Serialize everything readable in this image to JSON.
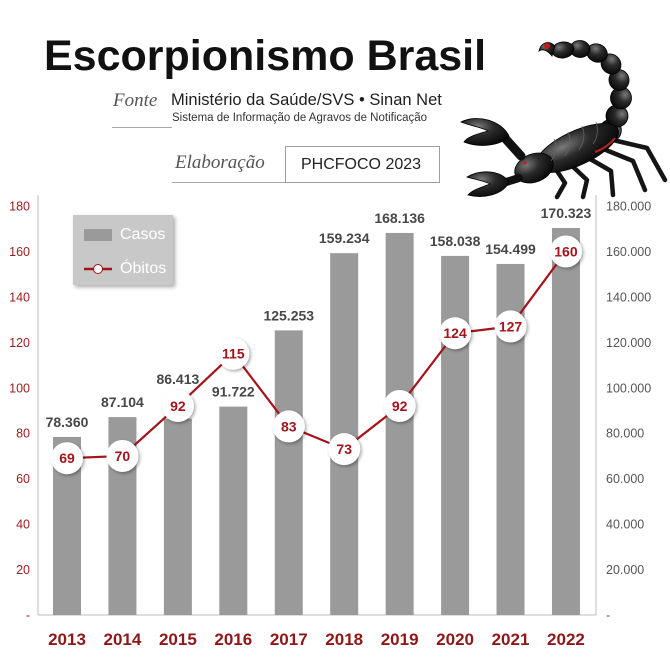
{
  "chart_data": {
    "type": "bar",
    "title": "Escorpionismo Brasil",
    "categories": [
      "2013",
      "2014",
      "2015",
      "2016",
      "2017",
      "2018",
      "2019",
      "2020",
      "2021",
      "2022"
    ],
    "series": [
      {
        "name": "Casos",
        "type": "bar",
        "axis": "right",
        "values": [
          78360,
          87104,
          86413,
          91722,
          125253,
          159234,
          168136,
          158038,
          154499,
          170323
        ],
        "data_labels": [
          "78.360",
          "87.104",
          "86.413",
          "91.722",
          "125.253",
          "159.234",
          "168.136",
          "158.038",
          "154.499",
          "170.323"
        ]
      },
      {
        "name": "Óbitos",
        "type": "line",
        "axis": "left",
        "values": [
          69,
          70,
          92,
          115,
          83,
          73,
          92,
          124,
          127,
          160
        ]
      }
    ],
    "left_axis": {
      "min": 0,
      "max": 180,
      "step": 20,
      "tick_labels": [
        "-",
        "20",
        "40",
        "60",
        "80",
        "100",
        "120",
        "140",
        "160",
        "180"
      ]
    },
    "right_axis": {
      "min": 0,
      "max": 180000,
      "step": 20000,
      "tick_labels": [
        "-",
        "20.000",
        "40.000",
        "60.000",
        "80.000",
        "100.000",
        "120.000",
        "140.000",
        "160.000",
        "180.000"
      ]
    },
    "grid": false,
    "legend": {
      "position": "top-left"
    }
  },
  "header": {
    "source_label": "Fonte",
    "source_main": "Ministério da Saúde/SVS • Sinan Net",
    "source_sub": "Sistema de Informação de Agravos de Notificação",
    "credit_label": "Elaboração",
    "credit_value": "PHCFOCO 2023"
  },
  "illustration": {
    "icon": "scorpion-icon"
  },
  "colors": {
    "bar": "#9a9a9a",
    "line": "#a3141b",
    "marker_fill": "#ffffff",
    "marker_text": "#a3141b",
    "left_tick_text": "#9b1c1c",
    "right_tick_text": "#555555",
    "year_text": "#8e1818",
    "bar_label_text": "#474747",
    "axis_line": "#bdbdbd"
  }
}
